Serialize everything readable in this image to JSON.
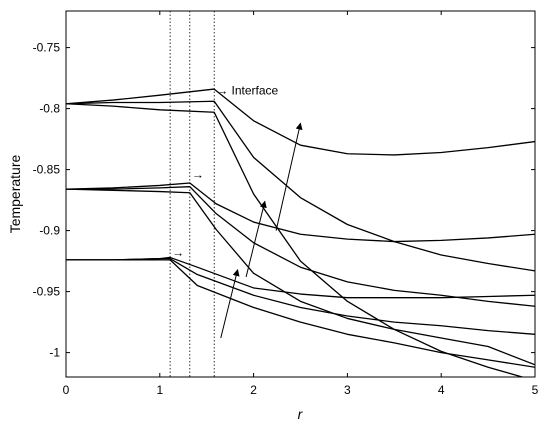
{
  "chart_data": {
    "type": "line",
    "xlabel": "r",
    "ylabel": "Temperature",
    "xlim": [
      0,
      5
    ],
    "ylim": [
      -1.02,
      -0.72
    ],
    "x_ticks": [
      0,
      1,
      2,
      3,
      4,
      5
    ],
    "x_tick_labels": [
      "0",
      "1",
      "2",
      "3",
      "4",
      "5"
    ],
    "y_ticks": [
      -0.75,
      -0.8,
      -0.85,
      -0.9,
      -0.95,
      -1.0
    ],
    "y_tick_labels": [
      "-0.75",
      "-0.8",
      "-0.85",
      "-0.9",
      "-0.95",
      "-1"
    ],
    "grid": false,
    "interface_lines_x": [
      1.11,
      1.32,
      1.58
    ],
    "annotations": [
      {
        "text": "→ Interface",
        "x": 1.58,
        "y": -0.785
      },
      {
        "text": "→",
        "x": 1.32,
        "y": -0.854
      },
      {
        "text": "→",
        "x": 1.11,
        "y": -0.918
      }
    ],
    "trend_arrows": [
      {
        "from": [
          1.65,
          -0.988
        ],
        "to": [
          1.83,
          -0.932
        ]
      },
      {
        "from": [
          1.92,
          -0.938
        ],
        "to": [
          2.12,
          -0.876
        ]
      },
      {
        "from": [
          2.24,
          -0.9
        ],
        "to": [
          2.5,
          -0.812
        ]
      }
    ],
    "series": [
      {
        "x": [
          0,
          0.5,
          1.0,
          1.58,
          2.0,
          2.5,
          3.0,
          3.5,
          4.0,
          4.5,
          5.0
        ],
        "values": [
          -0.796,
          -0.793,
          -0.789,
          -0.784,
          -0.81,
          -0.83,
          -0.837,
          -0.838,
          -0.836,
          -0.832,
          -0.827
        ]
      },
      {
        "x": [
          0,
          0.5,
          1.0,
          1.58,
          2.0,
          2.5,
          3.0,
          3.5,
          4.0,
          4.5,
          5.0
        ],
        "values": [
          -0.796,
          -0.795,
          -0.795,
          -0.794,
          -0.84,
          -0.873,
          -0.895,
          -0.909,
          -0.92,
          -0.927,
          -0.933
        ]
      },
      {
        "x": [
          0,
          0.5,
          1.0,
          1.58,
          2.0,
          2.5,
          3.0,
          3.5,
          4.0,
          4.5,
          5.0
        ],
        "values": [
          -0.796,
          -0.798,
          -0.801,
          -0.803,
          -0.87,
          -0.925,
          -0.958,
          -0.981,
          -0.999,
          -1.012,
          -1.023
        ]
      },
      {
        "x": [
          0,
          0.5,
          1.0,
          1.32,
          1.6,
          2.0,
          2.5,
          3.0,
          3.5,
          4.0,
          4.5,
          5.0
        ],
        "values": [
          -0.866,
          -0.865,
          -0.863,
          -0.861,
          -0.878,
          -0.893,
          -0.903,
          -0.907,
          -0.909,
          -0.908,
          -0.906,
          -0.903
        ]
      },
      {
        "x": [
          0,
          0.5,
          1.0,
          1.32,
          1.6,
          2.0,
          2.5,
          3.0,
          3.5,
          4.0,
          4.5,
          5.0
        ],
        "values": [
          -0.866,
          -0.866,
          -0.865,
          -0.864,
          -0.886,
          -0.91,
          -0.93,
          -0.942,
          -0.949,
          -0.953,
          -0.958,
          -0.962
        ]
      },
      {
        "x": [
          0,
          0.5,
          1.0,
          1.32,
          1.6,
          2.0,
          2.5,
          3.0,
          3.5,
          4.0,
          4.5,
          5.0
        ],
        "values": [
          -0.866,
          -0.867,
          -0.868,
          -0.869,
          -0.899,
          -0.935,
          -0.958,
          -0.972,
          -0.981,
          -0.988,
          -0.995,
          -1.01
        ]
      },
      {
        "x": [
          0,
          0.5,
          1.0,
          1.11,
          1.4,
          2.0,
          2.5,
          3.0,
          3.5,
          4.0,
          4.5,
          5.0
        ],
        "values": [
          -0.924,
          -0.924,
          -0.923,
          -0.922,
          -0.93,
          -0.947,
          -0.952,
          -0.955,
          -0.955,
          -0.955,
          -0.954,
          -0.953
        ]
      },
      {
        "x": [
          0,
          0.5,
          1.0,
          1.11,
          1.4,
          2.0,
          2.5,
          3.0,
          3.5,
          4.0,
          4.5,
          5.0
        ],
        "values": [
          -0.924,
          -0.924,
          -0.923,
          -0.923,
          -0.936,
          -0.953,
          -0.963,
          -0.97,
          -0.975,
          -0.978,
          -0.982,
          -0.985
        ]
      },
      {
        "x": [
          0,
          0.5,
          1.0,
          1.11,
          1.4,
          2.0,
          2.5,
          3.0,
          3.5,
          4.0,
          4.5,
          5.0
        ],
        "values": [
          -0.924,
          -0.924,
          -0.924,
          -0.924,
          -0.945,
          -0.963,
          -0.975,
          -0.985,
          -0.992,
          -1.0,
          -1.006,
          -1.012
        ]
      }
    ]
  }
}
